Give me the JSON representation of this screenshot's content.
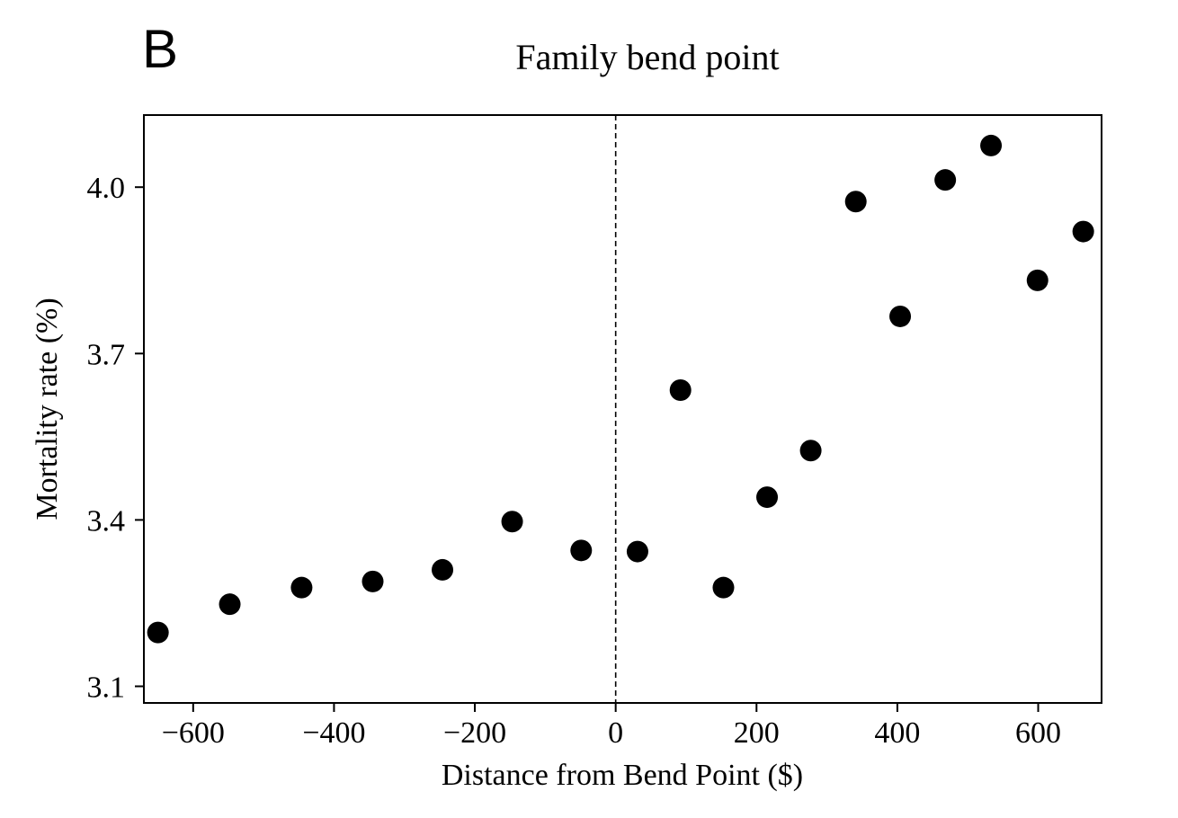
{
  "panel_label": "B",
  "chart_data": {
    "type": "scatter",
    "title": "Family bend point",
    "xlabel": "Distance from Bend Point ($)",
    "ylabel": "Mortality rate (%)",
    "xlim": [
      -670,
      690
    ],
    "ylim": [
      3.07,
      4.13
    ],
    "xticks": [
      -600,
      -400,
      -200,
      0,
      200,
      400,
      600
    ],
    "xtick_labels": [
      "−600",
      "−400",
      "−200",
      "0",
      "200",
      "400",
      "600"
    ],
    "yticks": [
      3.1,
      3.4,
      3.7,
      4.0
    ],
    "ytick_labels": [
      "3.1",
      "3.4",
      "3.7",
      "4.0"
    ],
    "reference_line": {
      "x": 0,
      "style": "dashed"
    },
    "grid": false,
    "marker_color": "#000000",
    "points": [
      {
        "x": -650,
        "y": 3.197
      },
      {
        "x": -548,
        "y": 3.248
      },
      {
        "x": -446,
        "y": 3.278
      },
      {
        "x": -345,
        "y": 3.289
      },
      {
        "x": -246,
        "y": 3.31
      },
      {
        "x": -147,
        "y": 3.397
      },
      {
        "x": -49,
        "y": 3.345
      },
      {
        "x": 31,
        "y": 3.343
      },
      {
        "x": 92,
        "y": 3.634
      },
      {
        "x": 153,
        "y": 3.278
      },
      {
        "x": 215,
        "y": 3.441
      },
      {
        "x": 277,
        "y": 3.525
      },
      {
        "x": 341,
        "y": 3.974
      },
      {
        "x": 404,
        "y": 3.767
      },
      {
        "x": 468,
        "y": 4.013
      },
      {
        "x": 533,
        "y": 4.075
      },
      {
        "x": 599,
        "y": 3.832
      },
      {
        "x": 664,
        "y": 3.92
      }
    ]
  }
}
